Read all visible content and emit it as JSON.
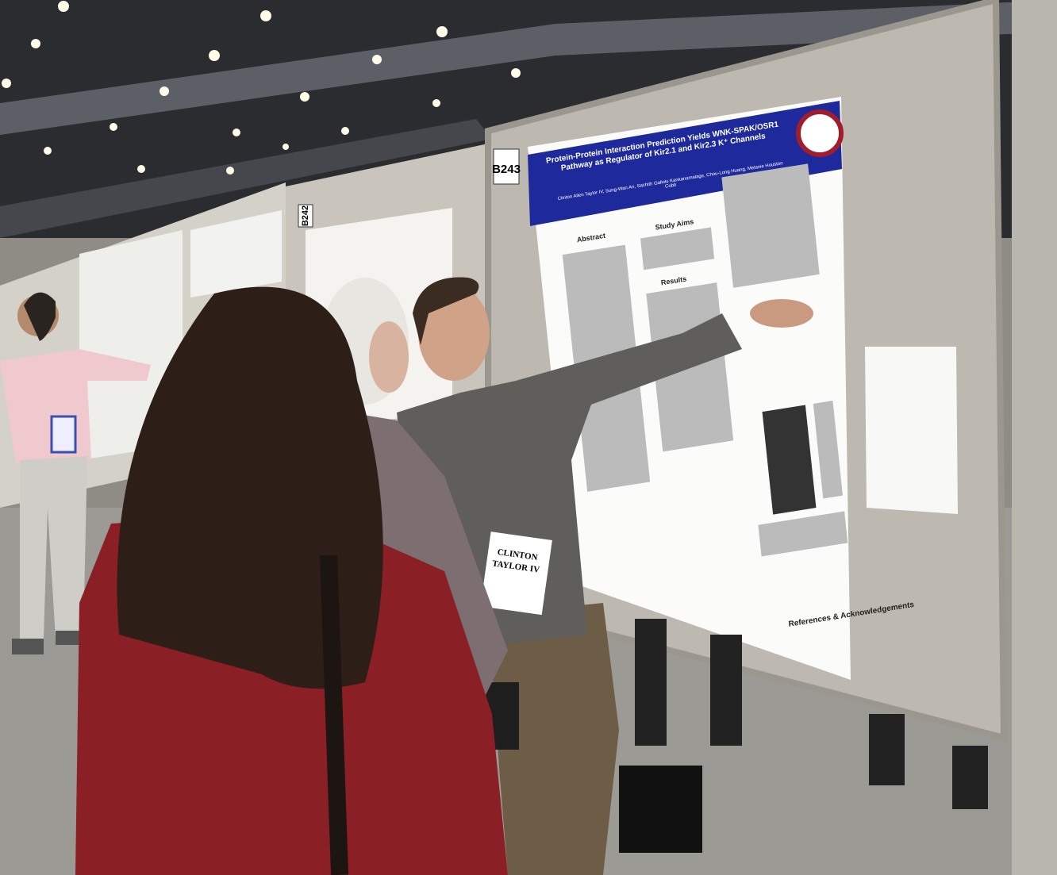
{
  "signs": {
    "left_board": "B242",
    "right_board": "B243"
  },
  "poster": {
    "title": "Protein-Protein Interaction Prediction Yields WNK-SPAK/OSR1 Pathway as Regulator of Kir2.1 and Kir2.3 K⁺ Channels",
    "authors": "Clinton Allen Taylor IV, Sung-Wan An, Sachith Gallolu Kankanamalage, Chou-Long Huang, Melanie Houston Cobb",
    "sections": [
      "Abstract",
      "Study Aims",
      "Results",
      "References & Acknowledgements"
    ]
  },
  "badge": {
    "first": "CLINTON",
    "last": "TAYLOR IV"
  }
}
